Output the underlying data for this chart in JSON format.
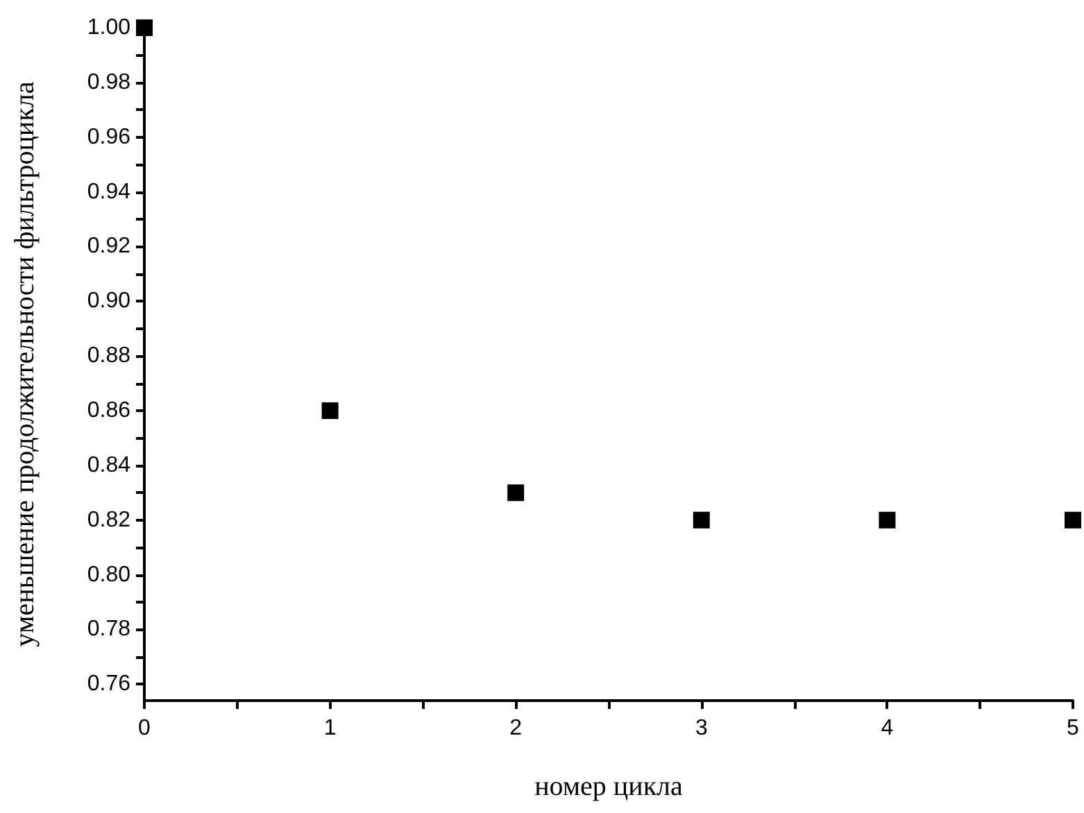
{
  "chart_data": {
    "type": "scatter",
    "xlabel": "номер цикла",
    "ylabel": "уменьшение продолжительности фильтроцикла",
    "x": [
      0,
      1,
      2,
      3,
      4,
      5
    ],
    "series": [
      {
        "color": "#000000",
        "values": [
          1.0,
          0.86,
          0.83,
          0.82,
          0.82,
          0.82
        ]
      }
    ],
    "xlim": [
      0,
      5
    ],
    "ylim": [
      0.754,
      1.0
    ],
    "xticks": [
      0,
      {
        "value": 0.5,
        "label": null
      },
      1,
      {
        "value": 1.5,
        "label": null
      },
      2,
      {
        "value": 2.5,
        "label": null
      },
      3,
      {
        "value": 3.5,
        "label": null
      },
      4,
      {
        "value": 4.5,
        "label": null
      },
      5
    ],
    "yticks": [
      {
        "value": 0.76,
        "label": "0.76"
      },
      {
        "value": 0.77,
        "label": null
      },
      {
        "value": 0.78,
        "label": "0.78"
      },
      {
        "value": 0.79,
        "label": null
      },
      {
        "value": 0.8,
        "label": "0.80"
      },
      {
        "value": 0.81,
        "label": null
      },
      {
        "value": 0.82,
        "label": "0.82"
      },
      {
        "value": 0.83,
        "label": null
      },
      {
        "value": 0.84,
        "label": "0.84"
      },
      {
        "value": 0.85,
        "label": null
      },
      {
        "value": 0.86,
        "label": "0.86"
      },
      {
        "value": 0.87,
        "label": null
      },
      {
        "value": 0.88,
        "label": "0.88"
      },
      {
        "value": 0.89,
        "label": null
      },
      {
        "value": 0.9,
        "label": "0.90"
      },
      {
        "value": 0.91,
        "label": null
      },
      {
        "value": 0.92,
        "label": "0.92"
      },
      {
        "value": 0.93,
        "label": null
      },
      {
        "value": 0.94,
        "label": "0.94"
      },
      {
        "value": 0.95,
        "label": null
      },
      {
        "value": 0.96,
        "label": "0.96"
      },
      {
        "value": 0.97,
        "label": null
      },
      {
        "value": 0.98,
        "label": "0.98"
      },
      {
        "value": 0.99,
        "label": null
      },
      {
        "value": 1.0,
        "label": "1.00"
      }
    ],
    "marker": "square"
  }
}
